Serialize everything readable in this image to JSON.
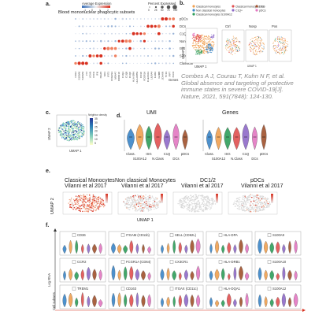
{
  "panel_a": {
    "label": "a.",
    "title": "Blood mononuclear phagocytic subsets",
    "legend_avg_title": "Average Expression",
    "legend_pct_title": "Percent Expressed",
    "legend_avg_ticks": [
      "-1",
      "0",
      "1",
      "2"
    ],
    "legend_pct_ticks": [
      "0",
      "25",
      "50",
      "75",
      "100"
    ],
    "rows": [
      "pDCs",
      "DCs",
      "C1Q+",
      "Non Class",
      "ISG",
      "S100A12",
      "Classical"
    ],
    "xlabel": "Genes",
    "genes": [
      "CD14",
      "S100A8",
      "S100A9",
      "LYZ",
      "VCAN",
      "FCN1",
      "IFI6",
      "ISG15",
      "MX1",
      "IFIT3",
      "FCGR3A",
      "MS4A7",
      "CDKN1C",
      "C1QA",
      "C1QB",
      "C1QC",
      "HLA-DRA",
      "HLA-DPB1",
      "CD1C",
      "FCER1A",
      "CLEC10A",
      "LILRA4",
      "IL3RA",
      "GZMB",
      "JCHAIN",
      "TCF4",
      "IRF7",
      "PLD4"
    ]
  },
  "panel_b": {
    "label": "b.",
    "legend": [
      "Classical monocytes",
      "Non classical monocytes",
      "Classical monocytes S100A12",
      "Classical monocytes ISG",
      "C1Q+",
      "DCs",
      "pDCs"
    ],
    "legend_colors": [
      "#f0a050",
      "#3a86c8",
      "#2e9e5a",
      "#e05050",
      "#8e6ac8",
      "#a0522d",
      "#e377c2"
    ],
    "umap_xlabel": "UMAP 1",
    "umap_ylabel": "UMAP 2",
    "split_titles": [
      "Ctrl",
      "Nosp",
      "Pos"
    ]
  },
  "citation": "Combes A J, Courau T, Kuhn N F, et al. Global absence and targeting of protective immune states in severe COVID-19[J]. Nature, 2021, 591(7848): 124-130.",
  "panel_c": {
    "label": "c.",
    "legend_title": "Neighbor density",
    "legend_ticks": [
      "35",
      "30",
      "25",
      "20",
      "15",
      "10",
      "5"
    ],
    "xlabel": "UMAP 1",
    "ylabel": "UMAP 2"
  },
  "panel_d": {
    "label": "d.",
    "umi_title": "UMI",
    "genes_title": "Genes",
    "categories": [
      "Class.",
      "S100A12",
      "ISG",
      "N.Class",
      "C1Q",
      "DCs",
      "pDCs"
    ],
    "violin_colors": [
      "#3a86c8",
      "#f0a050",
      "#2e9e5a",
      "#e05050",
      "#8e6ac8",
      "#e377c2",
      "#a0522d"
    ]
  },
  "panel_e": {
    "label": "e.",
    "titles": [
      "Classical Monocytes",
      "Non classical Monocytes",
      "DC1/2",
      "pDCs"
    ],
    "subtitle": "Vilanni et al 2017",
    "xlabel": "UMAP 1",
    "ylabel": "UMAP 2"
  },
  "panel_f": {
    "label": "f.",
    "genes": [
      "CD36",
      "ITGAM (CD11b)",
      "SELL (CD62L)",
      "HLA-DPA",
      "S100A9",
      "CCR2",
      "FCGR1A (CD64)",
      "CX3CR1",
      "HLA-DRB1",
      "S100A10",
      "TREM1",
      "CD163",
      "ITGAX (CD11c)",
      "HLA-DQA1",
      "S100A12"
    ],
    "ylabel": "Log RNA",
    "xlabel": "Cell subsets",
    "violin_colors": [
      "#3a86c8",
      "#f0a050",
      "#2e9e5a",
      "#e05050",
      "#8e6ac8",
      "#a0522d",
      "#e377c2"
    ]
  }
}
